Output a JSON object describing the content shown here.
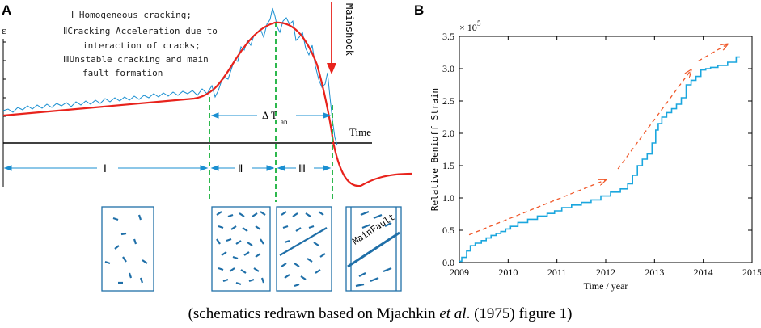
{
  "caption": {
    "prefix": "(schematics redrawn based on Mjachkin ",
    "etal": "et al",
    "suffix": ". (1975)  figure 1)"
  },
  "colors": {
    "model_curve": "#e8231c",
    "data_curve": "#1a8fd1",
    "stage_divider": "#2db84d",
    "schematic": "#1f6fa8",
    "benioff_line": "#1aa6de",
    "trend_arrow": "#f0582a",
    "axis": "#000000"
  },
  "panel_a": {
    "label": "A",
    "y_axis_symbol": "ε",
    "legend": {
      "line1": "Ⅰ Homogeneous cracking;",
      "line2": "ⅡCracking Acceleration due to",
      "line3": "interaction of cracks;",
      "line4": "ⅢUnstable cracking and main",
      "line5": "fault formation"
    },
    "mainshock_label": "Mainshock",
    "time_label": "Time",
    "delta_t_label": "Δ T",
    "delta_t_subscript": "an",
    "stages": [
      "Ⅰ",
      "Ⅱ",
      "Ⅲ"
    ],
    "main_fault_label": "MainFault"
  },
  "panel_b": {
    "label": "B",
    "chart_data": {
      "type": "line",
      "title": "",
      "xlabel": "Time / year",
      "ylabel": "Relative Benioff Strain",
      "y_multiplier": "× 10",
      "y_multiplier_exp": "5",
      "xlim": [
        2009,
        2015
      ],
      "ylim": [
        0,
        3.5
      ],
      "x_ticks": [
        "2009",
        "2010",
        "2011",
        "2012",
        "2013",
        "2014",
        "2015"
      ],
      "y_ticks": [
        "0.0",
        "0.5",
        "1.0",
        "1.5",
        "2.0",
        "2.5",
        "3.0",
        "3.5"
      ],
      "series": [
        {
          "name": "Relative Benioff Strain",
          "x": [
            2009.0,
            2009.1,
            2009.2,
            2009.25,
            2009.4,
            2009.5,
            2009.6,
            2009.7,
            2009.8,
            2009.9,
            2010.0,
            2010.1,
            2010.3,
            2010.5,
            2010.7,
            2010.9,
            2011.0,
            2011.2,
            2011.4,
            2011.6,
            2011.8,
            2012.0,
            2012.2,
            2012.4,
            2012.5,
            2012.6,
            2012.7,
            2012.8,
            2012.9,
            2013.0,
            2013.05,
            2013.1,
            2013.2,
            2013.3,
            2013.4,
            2013.5,
            2013.6,
            2013.7,
            2013.8,
            2013.9,
            2014.0,
            2014.1,
            2014.2,
            2014.4,
            2014.6,
            2014.75
          ],
          "y": [
            0.02,
            0.08,
            0.18,
            0.26,
            0.3,
            0.34,
            0.38,
            0.42,
            0.45,
            0.48,
            0.52,
            0.56,
            0.62,
            0.67,
            0.72,
            0.76,
            0.8,
            0.85,
            0.89,
            0.93,
            0.97,
            1.03,
            1.09,
            1.14,
            1.22,
            1.35,
            1.5,
            1.6,
            1.68,
            1.85,
            2.05,
            2.15,
            2.25,
            2.32,
            2.38,
            2.45,
            2.55,
            2.75,
            2.82,
            2.88,
            2.98,
            3.0,
            3.02,
            3.05,
            3.1,
            3.18
          ]
        }
      ],
      "trend_arrows": [
        {
          "from": [
            2009.2,
            0.43
          ],
          "to": [
            2012.0,
            1.28
          ]
        },
        {
          "from": [
            2012.25,
            1.45
          ],
          "to": [
            2013.75,
            2.98
          ]
        },
        {
          "from": [
            2013.9,
            3.12
          ],
          "to": [
            2014.5,
            3.38
          ]
        }
      ]
    }
  }
}
